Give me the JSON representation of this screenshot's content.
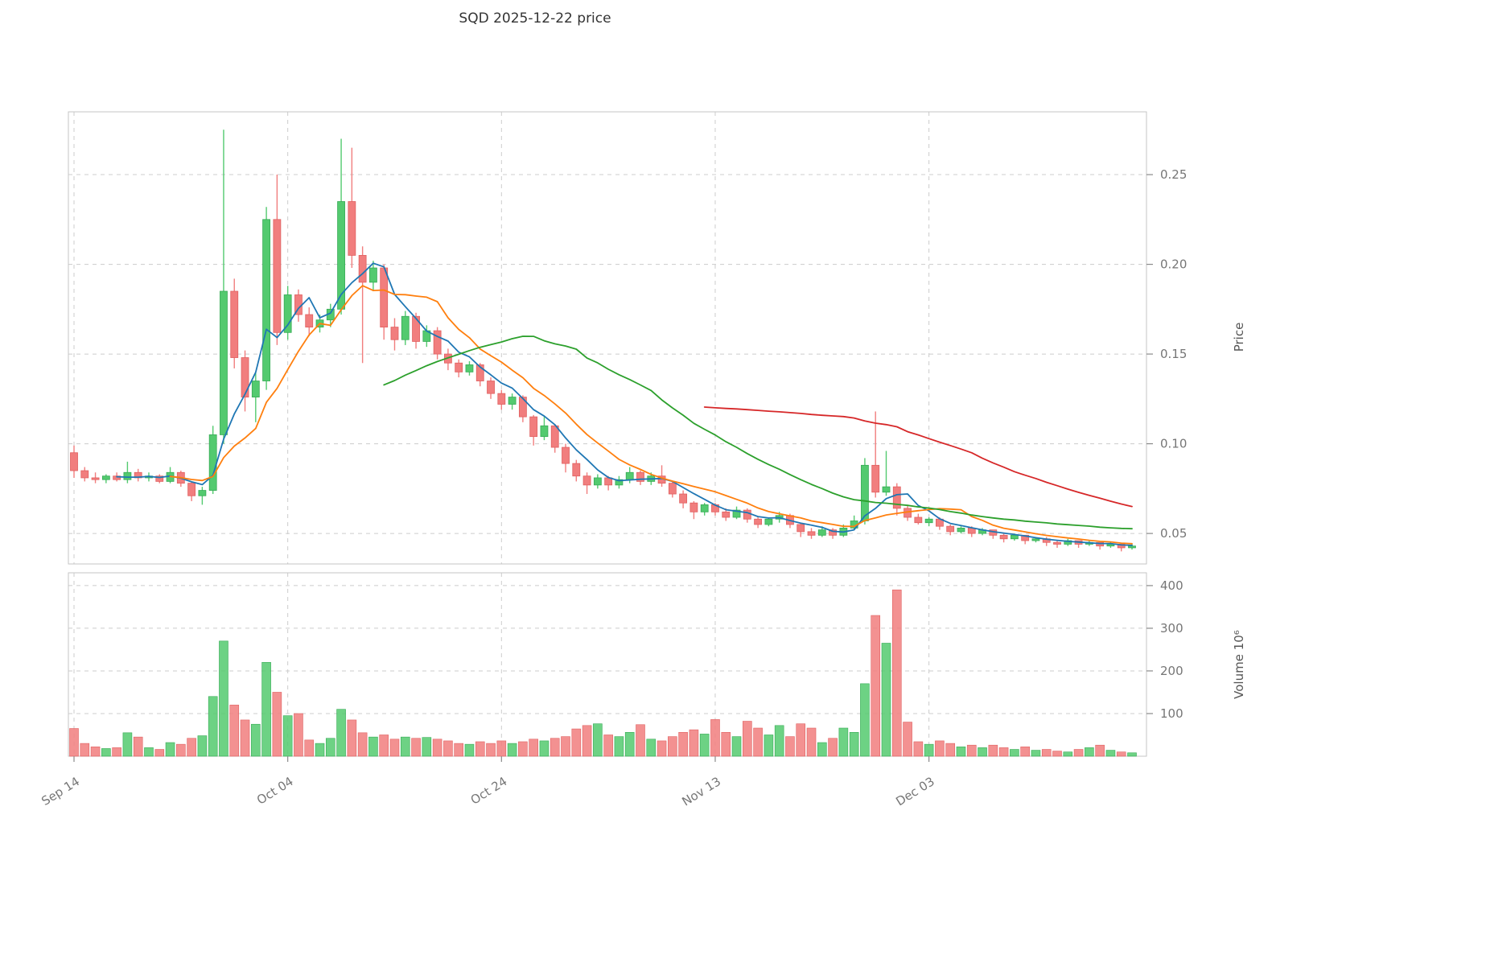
{
  "title": "SQD  2025-12-22  price",
  "chart_data": {
    "type": "candlestick_with_volume",
    "title": "SQD  2025-12-22  price",
    "symbol": "SQD",
    "as_of_date": "2025-12-22",
    "x_axis": {
      "tick_labels": [
        "Sep 14",
        "Oct 04",
        "Oct 24",
        "Nov 13",
        "Dec 03"
      ],
      "tick_indices": [
        0,
        20,
        40,
        60,
        80
      ]
    },
    "price_axis": {
      "label": "Price",
      "ticks": [
        0.05,
        0.1,
        0.15,
        0.2,
        0.25
      ],
      "tick_labels": [
        "0.05",
        "0.10",
        "0.15",
        "0.20",
        "0.25"
      ],
      "range": [
        0.033,
        0.285
      ],
      "side": "right"
    },
    "volume_axis": {
      "label": "Volume",
      "unit": "10⁶",
      "label_display": "Volume  10⁶",
      "ticks": [
        100,
        200,
        300,
        400
      ],
      "tick_labels": [
        "100",
        "200",
        "300",
        "400"
      ],
      "range": [
        0,
        430
      ],
      "side": "right"
    },
    "colors": {
      "up": "#53ca6f",
      "up_edge": "#36ab55",
      "down": "#f17e7e",
      "down_edge": "#e06060",
      "ma_fast": "#1f77b4",
      "ma_medium": "#ff7f0e",
      "ma_slow": "#2ca02c",
      "ma_slowest": "#d62728",
      "grid": "#cccccc",
      "spine": "#c6c6c6"
    },
    "moving_averages": [
      {
        "window": 5,
        "color_key": "ma_fast"
      },
      {
        "window": 10,
        "color_key": "ma_medium"
      },
      {
        "window": 30,
        "color_key": "ma_slow"
      },
      {
        "window": 60,
        "color_key": "ma_slowest"
      }
    ],
    "grid": true,
    "legend": "none",
    "volume_unit": "millions",
    "candle_columns": [
      "date",
      "open",
      "high",
      "low",
      "close",
      "volume"
    ],
    "candles": [
      [
        "09-14",
        0.095,
        0.099,
        0.081,
        0.085,
        65
      ],
      [
        "09-15",
        0.085,
        0.087,
        0.079,
        0.081,
        30
      ],
      [
        "09-16",
        0.081,
        0.084,
        0.078,
        0.08,
        22
      ],
      [
        "09-17",
        0.08,
        0.083,
        0.078,
        0.082,
        18
      ],
      [
        "09-18",
        0.082,
        0.084,
        0.079,
        0.08,
        20
      ],
      [
        "09-19",
        0.08,
        0.09,
        0.078,
        0.084,
        55
      ],
      [
        "09-20",
        0.084,
        0.086,
        0.079,
        0.081,
        45
      ],
      [
        "09-21",
        0.081,
        0.084,
        0.079,
        0.082,
        20
      ],
      [
        "09-22",
        0.082,
        0.083,
        0.078,
        0.079,
        16
      ],
      [
        "09-23",
        0.079,
        0.087,
        0.078,
        0.084,
        32
      ],
      [
        "09-24",
        0.084,
        0.085,
        0.076,
        0.078,
        28
      ],
      [
        "09-25",
        0.078,
        0.079,
        0.068,
        0.071,
        42
      ],
      [
        "09-26",
        0.071,
        0.076,
        0.066,
        0.074,
        48
      ],
      [
        "09-27",
        0.074,
        0.11,
        0.072,
        0.105,
        140
      ],
      [
        "09-28",
        0.105,
        0.275,
        0.1,
        0.185,
        270
      ],
      [
        "09-29",
        0.185,
        0.192,
        0.142,
        0.148,
        120
      ],
      [
        "09-30",
        0.148,
        0.152,
        0.118,
        0.126,
        85
      ],
      [
        "10-01",
        0.126,
        0.14,
        0.112,
        0.135,
        75
      ],
      [
        "10-02",
        0.135,
        0.232,
        0.13,
        0.225,
        220
      ],
      [
        "10-03",
        0.225,
        0.25,
        0.155,
        0.162,
        150
      ],
      [
        "10-04",
        0.162,
        0.188,
        0.158,
        0.183,
        95
      ],
      [
        "10-05",
        0.183,
        0.186,
        0.168,
        0.172,
        100
      ],
      [
        "10-06",
        0.172,
        0.176,
        0.16,
        0.165,
        38
      ],
      [
        "10-07",
        0.165,
        0.172,
        0.162,
        0.169,
        30
      ],
      [
        "10-08",
        0.169,
        0.178,
        0.165,
        0.175,
        42
      ],
      [
        "10-09",
        0.175,
        0.27,
        0.172,
        0.235,
        110
      ],
      [
        "10-10",
        0.235,
        0.265,
        0.198,
        0.205,
        85
      ],
      [
        "10-11",
        0.205,
        0.21,
        0.145,
        0.19,
        55
      ],
      [
        "10-12",
        0.19,
        0.202,
        0.185,
        0.198,
        45
      ],
      [
        "10-13",
        0.198,
        0.2,
        0.158,
        0.165,
        50
      ],
      [
        "10-14",
        0.165,
        0.17,
        0.152,
        0.158,
        40
      ],
      [
        "10-15",
        0.158,
        0.174,
        0.155,
        0.171,
        45
      ],
      [
        "10-16",
        0.171,
        0.173,
        0.153,
        0.157,
        42
      ],
      [
        "10-17",
        0.157,
        0.166,
        0.154,
        0.163,
        44
      ],
      [
        "10-18",
        0.163,
        0.165,
        0.147,
        0.15,
        40
      ],
      [
        "10-19",
        0.15,
        0.153,
        0.141,
        0.145,
        36
      ],
      [
        "10-20",
        0.145,
        0.147,
        0.137,
        0.14,
        30
      ],
      [
        "10-21",
        0.14,
        0.146,
        0.138,
        0.144,
        28
      ],
      [
        "10-22",
        0.144,
        0.145,
        0.132,
        0.135,
        34
      ],
      [
        "10-23",
        0.135,
        0.137,
        0.125,
        0.128,
        30
      ],
      [
        "10-24",
        0.128,
        0.13,
        0.119,
        0.122,
        36
      ],
      [
        "10-25",
        0.122,
        0.128,
        0.119,
        0.126,
        30
      ],
      [
        "10-26",
        0.126,
        0.127,
        0.112,
        0.115,
        34
      ],
      [
        "10-27",
        0.115,
        0.116,
        0.099,
        0.104,
        40
      ],
      [
        "10-28",
        0.104,
        0.115,
        0.102,
        0.11,
        36
      ],
      [
        "10-29",
        0.11,
        0.111,
        0.095,
        0.098,
        42
      ],
      [
        "10-30",
        0.098,
        0.1,
        0.084,
        0.089,
        46
      ],
      [
        "10-31",
        0.089,
        0.091,
        0.079,
        0.082,
        64
      ],
      [
        "11-01",
        0.082,
        0.084,
        0.072,
        0.077,
        72
      ],
      [
        "11-02",
        0.077,
        0.083,
        0.075,
        0.081,
        76
      ],
      [
        "11-03",
        0.081,
        0.082,
        0.074,
        0.077,
        50
      ],
      [
        "11-04",
        0.077,
        0.082,
        0.075,
        0.08,
        46
      ],
      [
        "11-05",
        0.08,
        0.087,
        0.078,
        0.084,
        56
      ],
      [
        "11-06",
        0.084,
        0.085,
        0.077,
        0.079,
        74
      ],
      [
        "11-07",
        0.079,
        0.084,
        0.077,
        0.082,
        40
      ],
      [
        "11-08",
        0.082,
        0.088,
        0.076,
        0.078,
        36
      ],
      [
        "11-09",
        0.078,
        0.079,
        0.07,
        0.072,
        46
      ],
      [
        "11-10",
        0.072,
        0.074,
        0.064,
        0.067,
        56
      ],
      [
        "11-11",
        0.067,
        0.068,
        0.058,
        0.062,
        62
      ],
      [
        "11-12",
        0.062,
        0.067,
        0.06,
        0.066,
        52
      ],
      [
        "11-13",
        0.066,
        0.067,
        0.06,
        0.062,
        86
      ],
      [
        "11-14",
        0.062,
        0.064,
        0.057,
        0.059,
        56
      ],
      [
        "11-15",
        0.059,
        0.065,
        0.058,
        0.063,
        46
      ],
      [
        "11-16",
        0.063,
        0.064,
        0.056,
        0.058,
        82
      ],
      [
        "11-17",
        0.058,
        0.059,
        0.053,
        0.055,
        66
      ],
      [
        "11-18",
        0.055,
        0.059,
        0.054,
        0.058,
        50
      ],
      [
        "11-19",
        0.058,
        0.062,
        0.056,
        0.06,
        72
      ],
      [
        "11-20",
        0.06,
        0.061,
        0.053,
        0.055,
        46
      ],
      [
        "11-21",
        0.055,
        0.056,
        0.048,
        0.051,
        76
      ],
      [
        "11-22",
        0.051,
        0.053,
        0.047,
        0.049,
        66
      ],
      [
        "11-23",
        0.049,
        0.054,
        0.048,
        0.052,
        32
      ],
      [
        "11-24",
        0.052,
        0.053,
        0.047,
        0.049,
        42
      ],
      [
        "11-25",
        0.049,
        0.055,
        0.048,
        0.053,
        66
      ],
      [
        "11-26",
        0.053,
        0.06,
        0.052,
        0.057,
        56
      ],
      [
        "11-27",
        0.057,
        0.092,
        0.055,
        0.088,
        170
      ],
      [
        "11-28",
        0.088,
        0.118,
        0.07,
        0.073,
        330
      ],
      [
        "11-29",
        0.073,
        0.096,
        0.071,
        0.076,
        265
      ],
      [
        "11-30",
        0.076,
        0.078,
        0.06,
        0.064,
        390
      ],
      [
        "12-01",
        0.064,
        0.066,
        0.057,
        0.059,
        80
      ],
      [
        "12-02",
        0.059,
        0.061,
        0.055,
        0.056,
        34
      ],
      [
        "12-03",
        0.056,
        0.059,
        0.054,
        0.058,
        28
      ],
      [
        "12-04",
        0.058,
        0.059,
        0.052,
        0.054,
        36
      ],
      [
        "12-05",
        0.054,
        0.055,
        0.049,
        0.051,
        30
      ],
      [
        "12-06",
        0.051,
        0.054,
        0.05,
        0.053,
        22
      ],
      [
        "12-07",
        0.053,
        0.054,
        0.048,
        0.05,
        26
      ],
      [
        "12-08",
        0.05,
        0.053,
        0.049,
        0.052,
        20
      ],
      [
        "12-09",
        0.052,
        0.052,
        0.047,
        0.049,
        26
      ],
      [
        "12-10",
        0.049,
        0.05,
        0.045,
        0.047,
        20
      ],
      [
        "12-11",
        0.047,
        0.05,
        0.046,
        0.049,
        16
      ],
      [
        "12-12",
        0.049,
        0.049,
        0.044,
        0.046,
        22
      ],
      [
        "12-13",
        0.046,
        0.048,
        0.045,
        0.047,
        14
      ],
      [
        "12-14",
        0.047,
        0.048,
        0.043,
        0.045,
        16
      ],
      [
        "12-15",
        0.045,
        0.046,
        0.042,
        0.044,
        12
      ],
      [
        "12-16",
        0.044,
        0.047,
        0.043,
        0.046,
        10
      ],
      [
        "12-17",
        0.046,
        0.046,
        0.042,
        0.044,
        16
      ],
      [
        "12-18",
        0.044,
        0.046,
        0.043,
        0.045,
        20
      ],
      [
        "12-19",
        0.045,
        0.045,
        0.041,
        0.043,
        26
      ],
      [
        "12-20",
        0.043,
        0.045,
        0.042,
        0.044,
        14
      ],
      [
        "12-21",
        0.044,
        0.044,
        0.04,
        0.042,
        10
      ],
      [
        "12-22",
        0.042,
        0.044,
        0.041,
        0.043,
        8
      ]
    ]
  }
}
